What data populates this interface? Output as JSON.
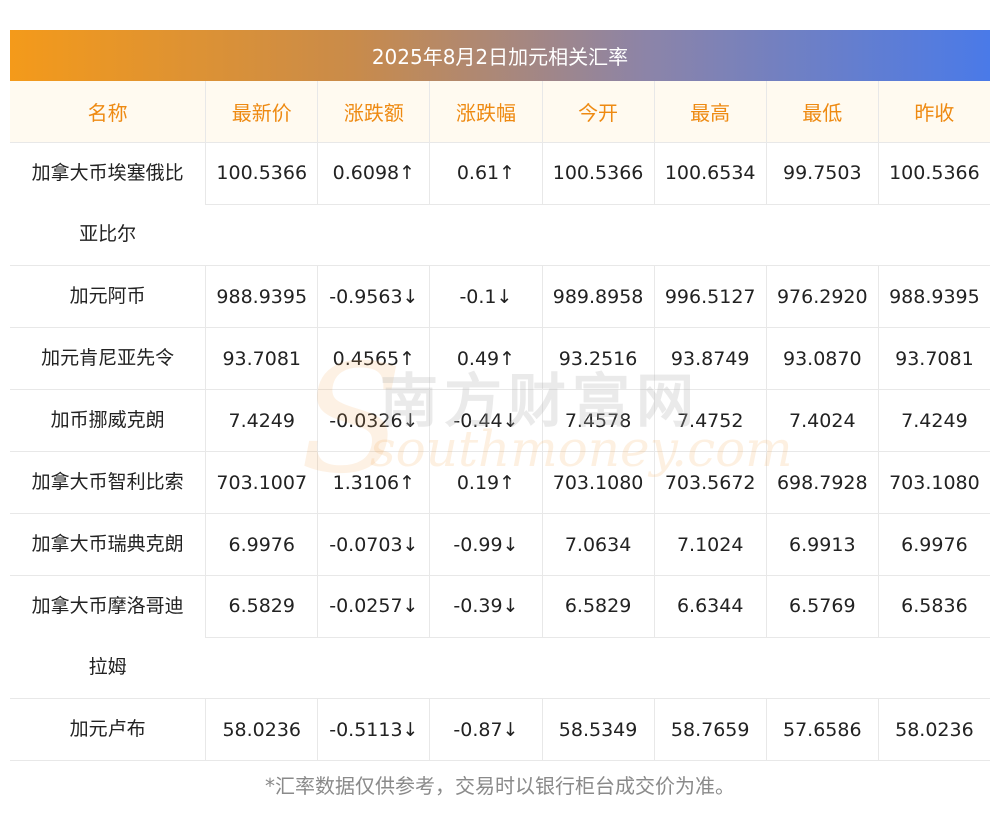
{
  "title": "2025年8月2日加元相关汇率",
  "columns": [
    "名称",
    "最新价",
    "涨跌额",
    "涨跌幅",
    "今开",
    "最高",
    "最低",
    "昨收"
  ],
  "rows": [
    {
      "name_lines": [
        "加拿大币埃塞俄比",
        "亚比尔"
      ],
      "latest": "100.5366",
      "change": "0.6098↑",
      "change_pct": "0.61↑",
      "open": "100.5366",
      "high": "100.6534",
      "low": "99.7503",
      "prev_close": "100.5366",
      "trend": "up"
    },
    {
      "name_lines": [
        "加元阿币"
      ],
      "latest": "988.9395",
      "change": "-0.9563↓",
      "change_pct": "-0.1↓",
      "open": "989.8958",
      "high": "996.5127",
      "low": "976.2920",
      "prev_close": "988.9395",
      "trend": "down"
    },
    {
      "name_lines": [
        "加元肯尼亚先令"
      ],
      "latest": "93.7081",
      "change": "0.4565↑",
      "change_pct": "0.49↑",
      "open": "93.2516",
      "high": "93.8749",
      "low": "93.0870",
      "prev_close": "93.7081",
      "trend": "up"
    },
    {
      "name_lines": [
        "加币挪威克朗"
      ],
      "latest": "7.4249",
      "change": "-0.0326↓",
      "change_pct": "-0.44↓",
      "open": "7.4578",
      "high": "7.4752",
      "low": "7.4024",
      "prev_close": "7.4249",
      "trend": "down"
    },
    {
      "name_lines": [
        "加拿大币智利比索"
      ],
      "latest": "703.1007",
      "change": "1.3106↑",
      "change_pct": "0.19↑",
      "open": "703.1080",
      "high": "703.5672",
      "low": "698.7928",
      "prev_close": "703.1080",
      "trend": "up"
    },
    {
      "name_lines": [
        "加拿大币瑞典克朗"
      ],
      "latest": "6.9976",
      "change": "-0.0703↓",
      "change_pct": "-0.99↓",
      "open": "7.0634",
      "high": "7.1024",
      "low": "6.9913",
      "prev_close": "6.9976",
      "trend": "down"
    },
    {
      "name_lines": [
        "加拿大币摩洛哥迪",
        "拉姆"
      ],
      "latest": "6.5829",
      "change": "-0.0257↓",
      "change_pct": "-0.39↓",
      "open": "6.5829",
      "high": "6.6344",
      "low": "6.5769",
      "prev_close": "6.5836",
      "trend": "down"
    },
    {
      "name_lines": [
        "加元卢布"
      ],
      "latest": "58.0236",
      "change": "-0.5113↓",
      "change_pct": "-0.87↓",
      "open": "58.5349",
      "high": "58.7659",
      "low": "57.6586",
      "prev_close": "58.0236",
      "trend": "down"
    }
  ],
  "footnote": "*汇率数据仅供参考，交易时以银行柜台成交价为准。",
  "watermark": {
    "cn": "南方财富网",
    "en": "southmoney.com",
    "s": "S"
  },
  "colors": {
    "up": "#e0121f",
    "down": "#1a8a1a",
    "header_text": "#ee8a12",
    "header_bg": "#fffaf0"
  }
}
